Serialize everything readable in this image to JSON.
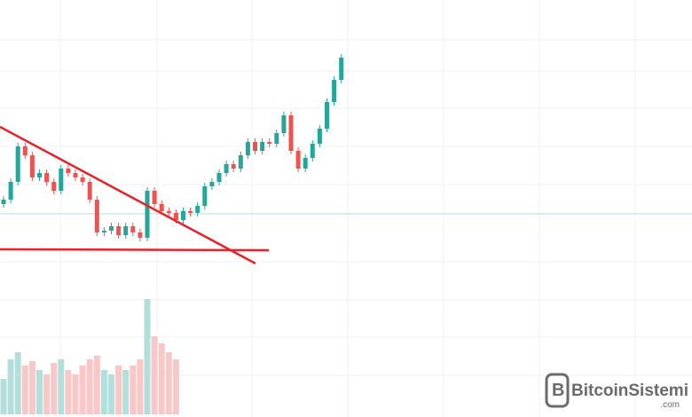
{
  "chart_data": {
    "type": "candlestick",
    "ylim": [
      0,
      470
    ],
    "open": [
      240,
      245,
      265,
      305,
      295,
      270,
      275,
      265,
      255,
      280,
      275,
      270,
      265,
      245,
      208,
      210,
      215,
      205,
      215,
      208,
      202,
      255,
      240,
      232,
      230,
      222,
      232,
      230,
      238,
      260,
      265,
      275,
      285,
      280,
      295,
      310,
      300,
      310,
      308,
      320,
      340,
      300,
      280,
      292,
      308,
      325,
      355,
      380
    ],
    "close": [
      245,
      265,
      305,
      295,
      270,
      275,
      265,
      255,
      280,
      275,
      270,
      265,
      245,
      208,
      210,
      215,
      205,
      215,
      208,
      202,
      255,
      240,
      232,
      230,
      222,
      232,
      230,
      238,
      260,
      265,
      275,
      285,
      280,
      295,
      310,
      300,
      310,
      308,
      320,
      340,
      300,
      280,
      292,
      308,
      325,
      355,
      380,
      405
    ],
    "volume": [
      40,
      62,
      70,
      55,
      60,
      50,
      45,
      58,
      62,
      50,
      45,
      55,
      62,
      66,
      50,
      45,
      55,
      50,
      55,
      62,
      130,
      88,
      80,
      70,
      62,
      null,
      null,
      null,
      null,
      null,
      null,
      null,
      null,
      null,
      null,
      null,
      null,
      null,
      null,
      null,
      null,
      null,
      null,
      null,
      null,
      null,
      null,
      null
    ],
    "colors": {
      "up": "#26a69a",
      "down": "#ef5350"
    },
    "watermark": {
      "name": "BitcoinSistemi",
      "suffix": ".com"
    }
  }
}
